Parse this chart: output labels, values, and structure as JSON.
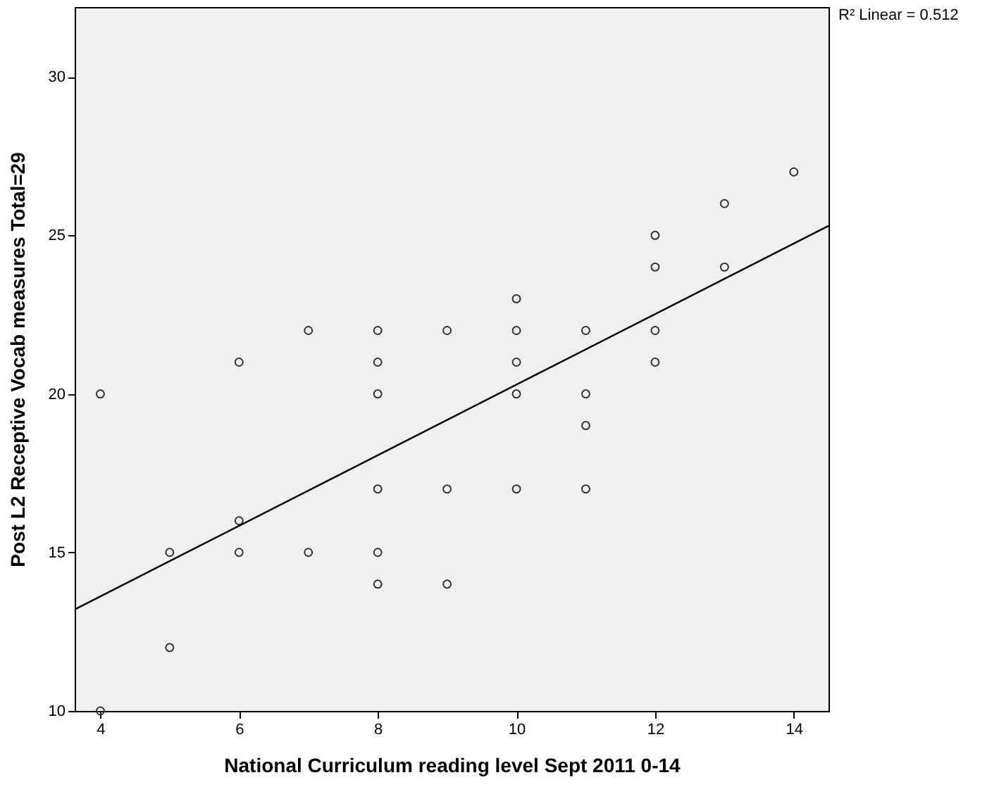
{
  "chart_data": {
    "type": "scatter",
    "xlabel": "National Curriculum reading level Sept 2011 0-14",
    "ylabel": "Post L2 Receptive Vocab measures Total=29",
    "x": [
      4,
      4,
      5,
      5,
      6,
      6,
      6,
      7,
      7,
      8,
      8,
      8,
      8,
      8,
      8,
      9,
      9,
      9,
      10,
      10,
      10,
      10,
      10,
      11,
      11,
      11,
      11,
      12,
      12,
      12,
      12,
      13,
      13,
      14
    ],
    "series": [
      {
        "color": "#333333",
        "marker": "circle",
        "values": [
          20,
          10,
          15,
          12,
          21,
          16,
          15,
          22,
          15,
          22,
          21,
          20,
          17,
          15,
          14,
          22,
          17,
          14,
          23,
          22,
          21,
          20,
          17,
          22,
          20,
          19,
          17,
          25,
          24,
          22,
          21,
          26,
          24,
          27
        ]
      },
      {
        "type": "line",
        "color": "#000000",
        "marker": "none",
        "x": [
          3.63,
          14.5
        ],
        "values": [
          13.2,
          25.3
        ]
      }
    ],
    "xlim": [
      3.63,
      14.5
    ],
    "ylim": [
      10,
      32.2
    ],
    "xticks": [
      4,
      6,
      8,
      10,
      12,
      14
    ],
    "yticks": [
      10,
      15,
      20,
      25,
      30
    ],
    "annotations": [
      "R² Linear = 0.512"
    ],
    "grid": false
  }
}
